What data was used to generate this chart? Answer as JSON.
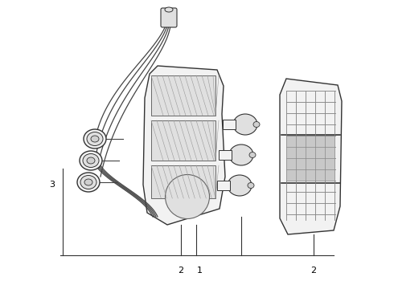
{
  "bg_color": "#ffffff",
  "line_color": "#333333",
  "label_color": "#000000",
  "wire_color": "#444444",
  "fill_light": "#f2f2f2",
  "fill_gray": "#d0d0d0",
  "fill_mid": "#e0e0e0"
}
